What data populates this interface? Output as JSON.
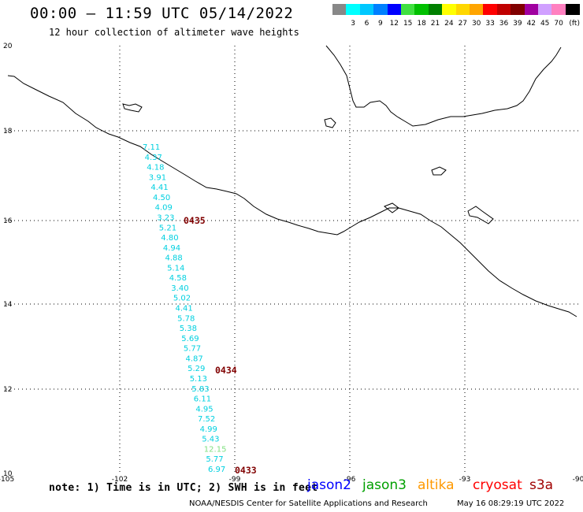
{
  "header": {
    "title": "00:00 — 11:59 UTC 05/14/2022",
    "subtitle": "12 hour collection of altimeter wave heights"
  },
  "colorbar": {
    "unit_label": "(ft)",
    "cells": [
      {
        "color": "#888888",
        "label": ""
      },
      {
        "color": "#00ffff",
        "label": "3"
      },
      {
        "color": "#00c8ff",
        "label": "6"
      },
      {
        "color": "#0080ff",
        "label": "9"
      },
      {
        "color": "#0000ff",
        "label": "12"
      },
      {
        "color": "#40e040",
        "label": "15"
      },
      {
        "color": "#00c000",
        "label": "18"
      },
      {
        "color": "#008000",
        "label": "21"
      },
      {
        "color": "#ffff00",
        "label": "24"
      },
      {
        "color": "#ffd700",
        "label": "27"
      },
      {
        "color": "#ffa500",
        "label": "30"
      },
      {
        "color": "#ff0000",
        "label": "33"
      },
      {
        "color": "#c00000",
        "label": "36"
      },
      {
        "color": "#800000",
        "label": "39"
      },
      {
        "color": "#a000a0",
        "label": "42"
      },
      {
        "color": "#d0a0ff",
        "label": "45"
      },
      {
        "color": "#ff80c0",
        "label": "70"
      },
      {
        "color": "#000000",
        "label": ""
      }
    ]
  },
  "map": {
    "lon_ticks": [
      "-105",
      "-102",
      "-99",
      "-96",
      "-93",
      "-90"
    ],
    "lat_ticks": [
      "20",
      "18",
      "16",
      "14",
      "12",
      "10"
    ],
    "swh_color": "#00d0e0",
    "swh_color_high": "#80e080",
    "pass_color": "#800000",
    "swh_values": [
      "7.11",
      "4.37",
      "4.18",
      "3.91",
      "4.41",
      "4.50",
      "4.09",
      "3.23",
      "5.21",
      "4.80",
      "4.94",
      "4.88",
      "5.14",
      "4.58",
      "3.40",
      "5.02",
      "4.41",
      "5.78",
      "5.38",
      "5.69",
      "5.77",
      "4.87",
      "5.29",
      "5.13",
      "5.83",
      "6.11",
      "4.95",
      "7.52",
      "4.99",
      "5.43",
      "12.15",
      "5.77",
      "6.97"
    ],
    "pass_labels": [
      "0435",
      "0434",
      "0433"
    ]
  },
  "note": "note: 1) Time is in UTC; 2) SWH is in feet",
  "legend": [
    {
      "label": "jason2",
      "color": "#0000ff"
    },
    {
      "label": "jason3",
      "color": "#00a000"
    },
    {
      "label": "altika",
      "color": "#ff9900"
    },
    {
      "label": "cryosat",
      "color": "#ff0000"
    },
    {
      "label": "s3a",
      "color": "#a00000"
    }
  ],
  "footer": {
    "left": "NOAA/NESDIS Center for Satellite Applications and Research",
    "right": "May 16 08:29:19 UTC 2022"
  }
}
